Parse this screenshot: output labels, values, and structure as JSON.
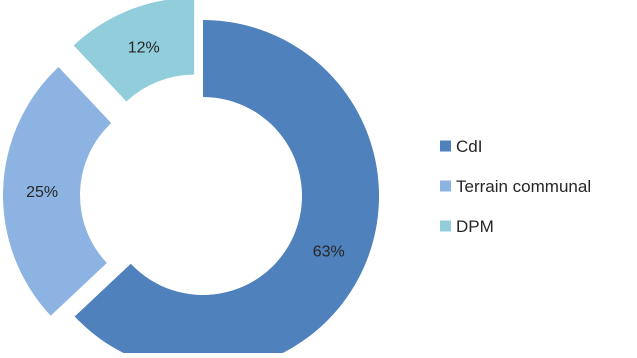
{
  "chart_data": {
    "type": "pie",
    "subtype": "exploded-donut",
    "title": "",
    "series": [
      {
        "name": "CdI",
        "value": 63,
        "label": "63%",
        "color": "#4F81BD"
      },
      {
        "name": "Terrain communal",
        "value": 25,
        "label": "25%",
        "color": "#8DB3E2"
      },
      {
        "name": "DPM",
        "value": 12,
        "label": "12%",
        "color": "#92CDDC"
      }
    ],
    "legend": {
      "placement": "right"
    }
  }
}
